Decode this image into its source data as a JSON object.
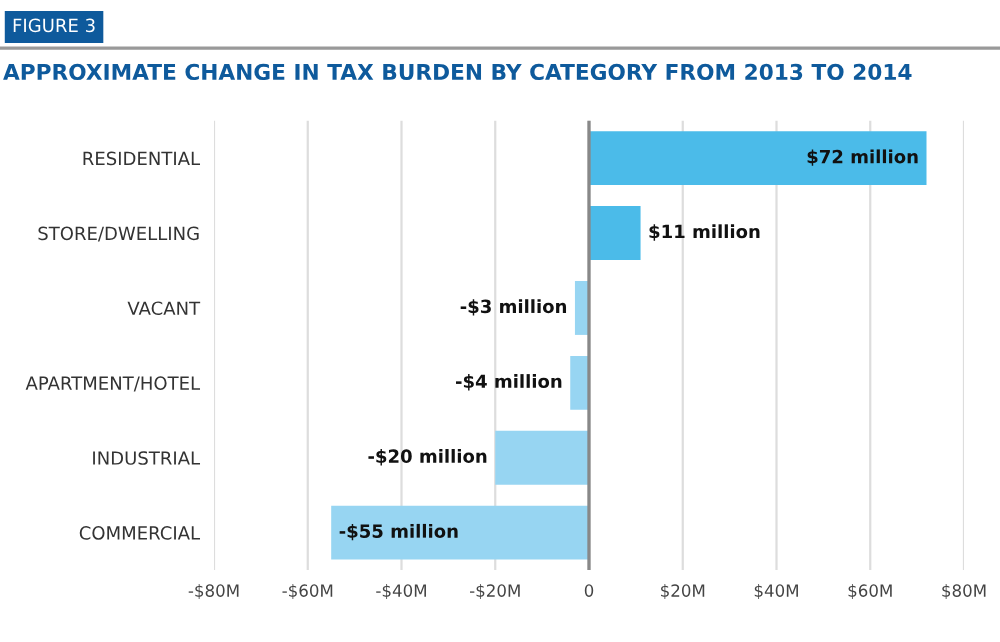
{
  "chart_data": {
    "type": "bar",
    "orientation": "horizontal",
    "title": "APPROXIMATE CHANGE IN TAX BURDEN BY CATEGORY FROM 2013 TO 2014",
    "annotations": [
      "FIGURE 3"
    ],
    "categories": [
      "RESIDENTIAL",
      "STORE/DWELLING",
      "VACANT",
      "APARTMENT/HOTEL",
      "INDUSTRIAL",
      "COMMERCIAL"
    ],
    "values": [
      72,
      11,
      -3,
      -4,
      -20,
      -55
    ],
    "colors": [
      "#4bbbe9",
      "#4bbbe9",
      "#97d5f2",
      "#97d5f2",
      "#97d5f2",
      "#97d5f2"
    ],
    "value_labels": [
      "$72 million",
      "$11 million",
      "-$3 million",
      "-$4 million",
      "-$20 million",
      "-$55 million"
    ],
    "xlim": [
      -80,
      80
    ],
    "xticks": [
      {
        "value": -80,
        "label": "-$80M"
      },
      {
        "value": -60,
        "label": "-$60M"
      },
      {
        "value": -40,
        "label": "-$40M"
      },
      {
        "value": -20,
        "label": "-$20M"
      },
      0,
      {
        "value": 20,
        "label": "$20M"
      },
      {
        "value": 40,
        "label": "$40M"
      },
      {
        "value": 60,
        "label": "$60M"
      },
      {
        "value": 80,
        "label": "$80M"
      }
    ],
    "grid": "x"
  }
}
